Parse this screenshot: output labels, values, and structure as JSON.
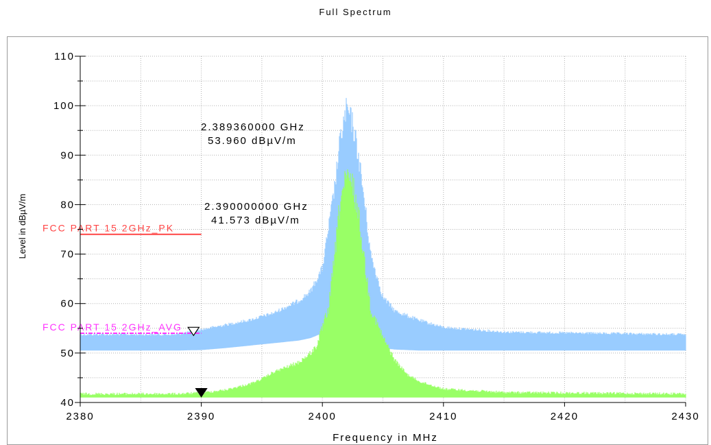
{
  "chart_data": {
    "type": "line",
    "title": "Full Spectrum",
    "xlabel": "Frequency in MHz",
    "ylabel": "Level in dBµV/m",
    "xlim": [
      2380,
      2430
    ],
    "ylim": [
      40,
      110
    ],
    "x_ticks": [
      2380,
      2390,
      2400,
      2410,
      2420,
      2430
    ],
    "y_ticks": [
      40,
      50,
      60,
      70,
      80,
      90,
      100,
      110
    ],
    "grid": true,
    "colors": {
      "peak": "#99ccff",
      "average": "#99ff66",
      "limit_pk": "#ff4444",
      "limit_avg": "#ff33ff",
      "grid": "#b0b0b0"
    },
    "series": [
      {
        "role": "peak",
        "color": "#99ccff",
        "floor_x": [
          2380,
          2388,
          2390,
          2392,
          2394,
          2396,
          2398,
          2399,
          2400,
          2401,
          2402,
          2402.5,
          2403,
          2404,
          2405,
          2406,
          2408,
          2410,
          2415,
          2430
        ],
        "floor_y": [
          50.5,
          50.5,
          50.6,
          51,
          51.5,
          52,
          52.5,
          53,
          54,
          55,
          56,
          55,
          53,
          51.5,
          51,
          50.7,
          50.5,
          50.5,
          50.5,
          50.5
        ],
        "top_x": [
          2380,
          2388,
          2390,
          2392,
          2394,
          2396,
          2398,
          2399,
          2400,
          2401,
          2401.5,
          2402,
          2402.5,
          2403,
          2403.5,
          2404,
          2405,
          2406,
          2408,
          2410,
          2415,
          2430
        ],
        "top_y": [
          54,
          54,
          55,
          56,
          57,
          58.5,
          61,
          63,
          68,
          85,
          96,
          102,
          99,
          92,
          82,
          71,
          62,
          59,
          57,
          55.5,
          54.5,
          54
        ]
      },
      {
        "role": "average",
        "color": "#99ff66",
        "floor_x": [
          2380,
          2388,
          2390,
          2392,
          2394,
          2396,
          2398,
          2399,
          2400,
          2401,
          2402,
          2402.5,
          2403,
          2404,
          2405,
          2406,
          2408,
          2410,
          2415,
          2430
        ],
        "floor_y": [
          41,
          41,
          41,
          41,
          41,
          41,
          41,
          41,
          41,
          41,
          41,
          41,
          41,
          41,
          41,
          41,
          41,
          41,
          41,
          41
        ],
        "top_x": [
          2380,
          2388,
          2390,
          2392,
          2394,
          2395,
          2396,
          2397,
          2398,
          2399,
          2399.5,
          2400,
          2400.5,
          2401,
          2401.5,
          2402,
          2402.5,
          2403,
          2403.5,
          2404,
          2405,
          2406,
          2407,
          2408,
          2410,
          2415,
          2430
        ],
        "top_y": [
          42,
          42,
          42.2,
          42.8,
          44,
          45,
          46.5,
          47.5,
          48.5,
          50.5,
          52,
          56,
          60,
          71,
          84,
          88,
          87,
          80,
          70,
          60,
          54,
          49,
          46,
          44.5,
          43,
          42.3,
          42
        ]
      },
      {
        "name": "FCC PART 15 2GHz_PK",
        "role": "limit",
        "color": "#ff4444",
        "x": [
          2380,
          2390
        ],
        "y": [
          74,
          74
        ]
      },
      {
        "name": "FCC PART 15 2GHz_AVG",
        "role": "limit",
        "color": "#ff33ff",
        "x": [
          2380,
          2390
        ],
        "y": [
          54,
          54
        ]
      }
    ],
    "markers": [
      {
        "x": 2389.36,
        "y": 53.96,
        "style": "hollow",
        "freq_label": "2.389360000 GHz",
        "level_label": "53.960 dBµV/m"
      },
      {
        "x": 2390.0,
        "y": 41.573,
        "style": "filled",
        "freq_label": "2.390000000 GHz",
        "level_label": "41.573 dBµV/m"
      }
    ]
  }
}
